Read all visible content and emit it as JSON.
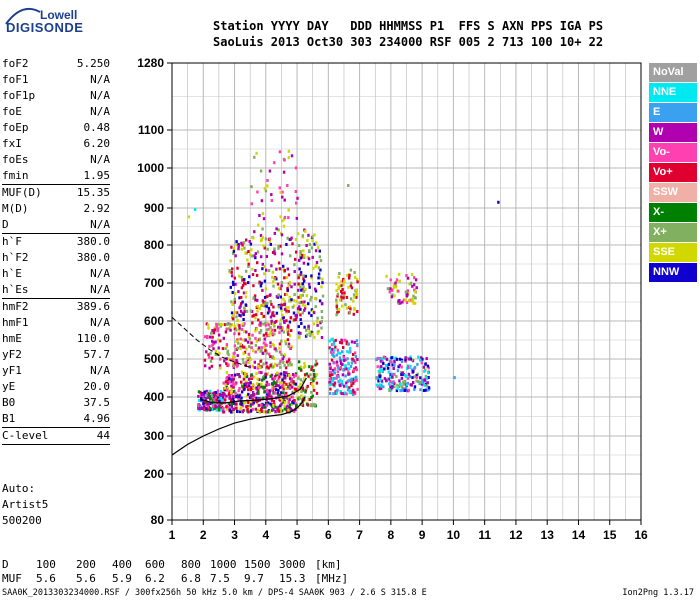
{
  "logo": {
    "line1": "Lowell",
    "line2": "DIGISONDE"
  },
  "header": {
    "line1": "Station YYYY DAY   DDD HHMMSS P1  FFS S AXN PPS IGA PS",
    "line2": "SaoLuis 2013 Oct30 303 234000 RSF 005 2 713 100 10+ 22"
  },
  "params": [
    {
      "name": "foF2",
      "value": "5.250"
    },
    {
      "name": "foF1",
      "value": "N/A"
    },
    {
      "name": "foF1p",
      "value": "N/A"
    },
    {
      "name": "foE",
      "value": "N/A"
    },
    {
      "name": "foEp",
      "value": "0.48"
    },
    {
      "name": "fxI",
      "value": "6.20"
    },
    {
      "name": "foEs",
      "value": "N/A"
    },
    {
      "name": "fmin",
      "value": "1.95"
    },
    {
      "sep": true
    },
    {
      "name": "MUF(D)",
      "value": "15.35"
    },
    {
      "name": "M(D)",
      "value": "2.92"
    },
    {
      "name": "D",
      "value": "N/A"
    },
    {
      "sep": true
    },
    {
      "name": "h`F",
      "value": "380.0"
    },
    {
      "name": "h`F2",
      "value": "380.0"
    },
    {
      "name": "h`E",
      "value": "N/A"
    },
    {
      "name": "h`Es",
      "value": "N/A"
    },
    {
      "sep": true
    },
    {
      "name": "hmF2",
      "value": "389.6"
    },
    {
      "name": "hmF1",
      "value": "N/A"
    },
    {
      "name": "hmE",
      "value": "110.0"
    },
    {
      "name": "yF2",
      "value": "57.7"
    },
    {
      "name": "yF1",
      "value": "N/A"
    },
    {
      "name": "yE",
      "value": "20.0"
    },
    {
      "name": "B0",
      "value": "37.5"
    },
    {
      "name": "B1",
      "value": "4.96"
    },
    {
      "sep": true
    },
    {
      "name": "C-level",
      "value": "44"
    },
    {
      "sep": true
    }
  ],
  "auto": {
    "line1": "Auto:",
    "line2": "Artist5",
    "line3": "500200"
  },
  "bottom_table": {
    "d_label": "D",
    "muf_label": "MUF",
    "d_values": [
      "100",
      "200",
      "400",
      "600",
      "800",
      "1000",
      "1500",
      "3000"
    ],
    "muf_values": [
      "5.6",
      "5.6",
      "5.9",
      "6.2",
      "6.8",
      "7.5",
      "9.7",
      "15.3"
    ],
    "d_unit": "[km]",
    "muf_unit": "[MHz]"
  },
  "footer": {
    "left": "SAA0K_2013303234000.RSF / 300fx256h 50 kHz 5.0 km / DPS-4 SAA0K 903 / 2.6 S 315.8 E",
    "right": "Ion2Png 1.3.17"
  },
  "legend": [
    {
      "label": "NoVal",
      "color": "#a0a0a0"
    },
    {
      "label": "NNE",
      "color": "#00e8f0"
    },
    {
      "label": "E",
      "color": "#3aa0f0"
    },
    {
      "label": "W",
      "color": "#b000b0"
    },
    {
      "label": "Vo-",
      "color": "#ff40b0"
    },
    {
      "label": "Vo+",
      "color": "#e00030"
    },
    {
      "label": "SSW",
      "color": "#f0b0a8"
    },
    {
      "label": "X-",
      "color": "#008000"
    },
    {
      "label": "X+",
      "color": "#80b060"
    },
    {
      "label": "SSE",
      "color": "#d0d800"
    },
    {
      "label": "NNW",
      "color": "#1000d0"
    }
  ],
  "chart_data": {
    "type": "scatter",
    "x_ticks": [
      1,
      2,
      3,
      4,
      5,
      6,
      7,
      8,
      9,
      10,
      11,
      12,
      13,
      14,
      15,
      16
    ],
    "xlim": [
      1,
      16
    ],
    "y_ticks": [
      80,
      200,
      300,
      400,
      500,
      600,
      700,
      800,
      900,
      1000,
      1100,
      1280
    ],
    "ylim": [
      80,
      1280
    ],
    "grid": true,
    "legend_position": "right",
    "clusters": [
      {
        "x": [
          1.8,
          2.6
        ],
        "y": [
          370,
          420
        ],
        "colors": [
          "Vo+",
          "W",
          "Vo-",
          "X-",
          "NNW",
          "NNE"
        ],
        "n": 200
      },
      {
        "x": [
          2.6,
          5.0
        ],
        "y": [
          365,
          470
        ],
        "colors": [
          "Vo+",
          "W",
          "Vo-",
          "X-",
          "SSE",
          "NNW"
        ],
        "n": 480
      },
      {
        "x": [
          2.0,
          4.8
        ],
        "y": [
          480,
          600
        ],
        "colors": [
          "SSE",
          "W",
          "X+",
          "Vo+",
          "Vo-"
        ],
        "n": 300
      },
      {
        "x": [
          2.8,
          5.2
        ],
        "y": [
          600,
          820
        ],
        "colors": [
          "SSE",
          "W",
          "NNW",
          "X+",
          "Vo+"
        ],
        "n": 300
      },
      {
        "x": [
          3.5,
          5.0
        ],
        "y": [
          820,
          1050
        ],
        "colors": [
          "SSE",
          "X+",
          "W",
          "Vo-"
        ],
        "n": 60
      },
      {
        "x": [
          5.0,
          5.6
        ],
        "y": [
          380,
          500
        ],
        "colors": [
          "X-",
          "X+",
          "SSE",
          "Vo+"
        ],
        "n": 80
      },
      {
        "x": [
          5.0,
          5.8
        ],
        "y": [
          560,
          850
        ],
        "colors": [
          "NNW",
          "SSE",
          "X+",
          "W"
        ],
        "n": 120
      },
      {
        "x": [
          6.0,
          6.9
        ],
        "y": [
          410,
          560
        ],
        "colors": [
          "Vo+",
          "W",
          "NNE",
          "E",
          "Vo-"
        ],
        "n": 180
      },
      {
        "x": [
          6.2,
          6.9
        ],
        "y": [
          620,
          740
        ],
        "colors": [
          "SSE",
          "X+",
          "Vo+"
        ],
        "n": 70
      },
      {
        "x": [
          7.5,
          9.2
        ],
        "y": [
          420,
          510
        ],
        "colors": [
          "NNE",
          "E",
          "X+",
          "Vo-",
          "W",
          "NNW"
        ],
        "n": 220
      },
      {
        "x": [
          7.8,
          8.8
        ],
        "y": [
          650,
          730
        ],
        "colors": [
          "SSE",
          "X+",
          "Vo-",
          "W"
        ],
        "n": 60
      }
    ],
    "profile_curve": [
      [
        1.0,
        250
      ],
      [
        1.5,
        278
      ],
      [
        2.0,
        300
      ],
      [
        2.5,
        318
      ],
      [
        3.0,
        333
      ],
      [
        3.5,
        343
      ],
      [
        4.0,
        350
      ],
      [
        4.5,
        355
      ],
      [
        4.8,
        362
      ],
      [
        5.0,
        372
      ],
      [
        5.15,
        385
      ],
      [
        5.25,
        400
      ]
    ],
    "trace_curve": [
      [
        1.9,
        395
      ],
      [
        2.3,
        385
      ],
      [
        2.7,
        385
      ],
      [
        3.2,
        390
      ],
      [
        3.7,
        392
      ],
      [
        4.2,
        396
      ],
      [
        4.7,
        402
      ],
      [
        5.1,
        420
      ],
      [
        5.3,
        450
      ]
    ],
    "dashed_curve": [
      [
        1.0,
        610
      ],
      [
        1.4,
        580
      ],
      [
        1.8,
        550
      ],
      [
        2.2,
        525
      ],
      [
        2.6,
        505
      ],
      [
        3.0,
        492
      ],
      [
        3.5,
        478
      ]
    ]
  }
}
